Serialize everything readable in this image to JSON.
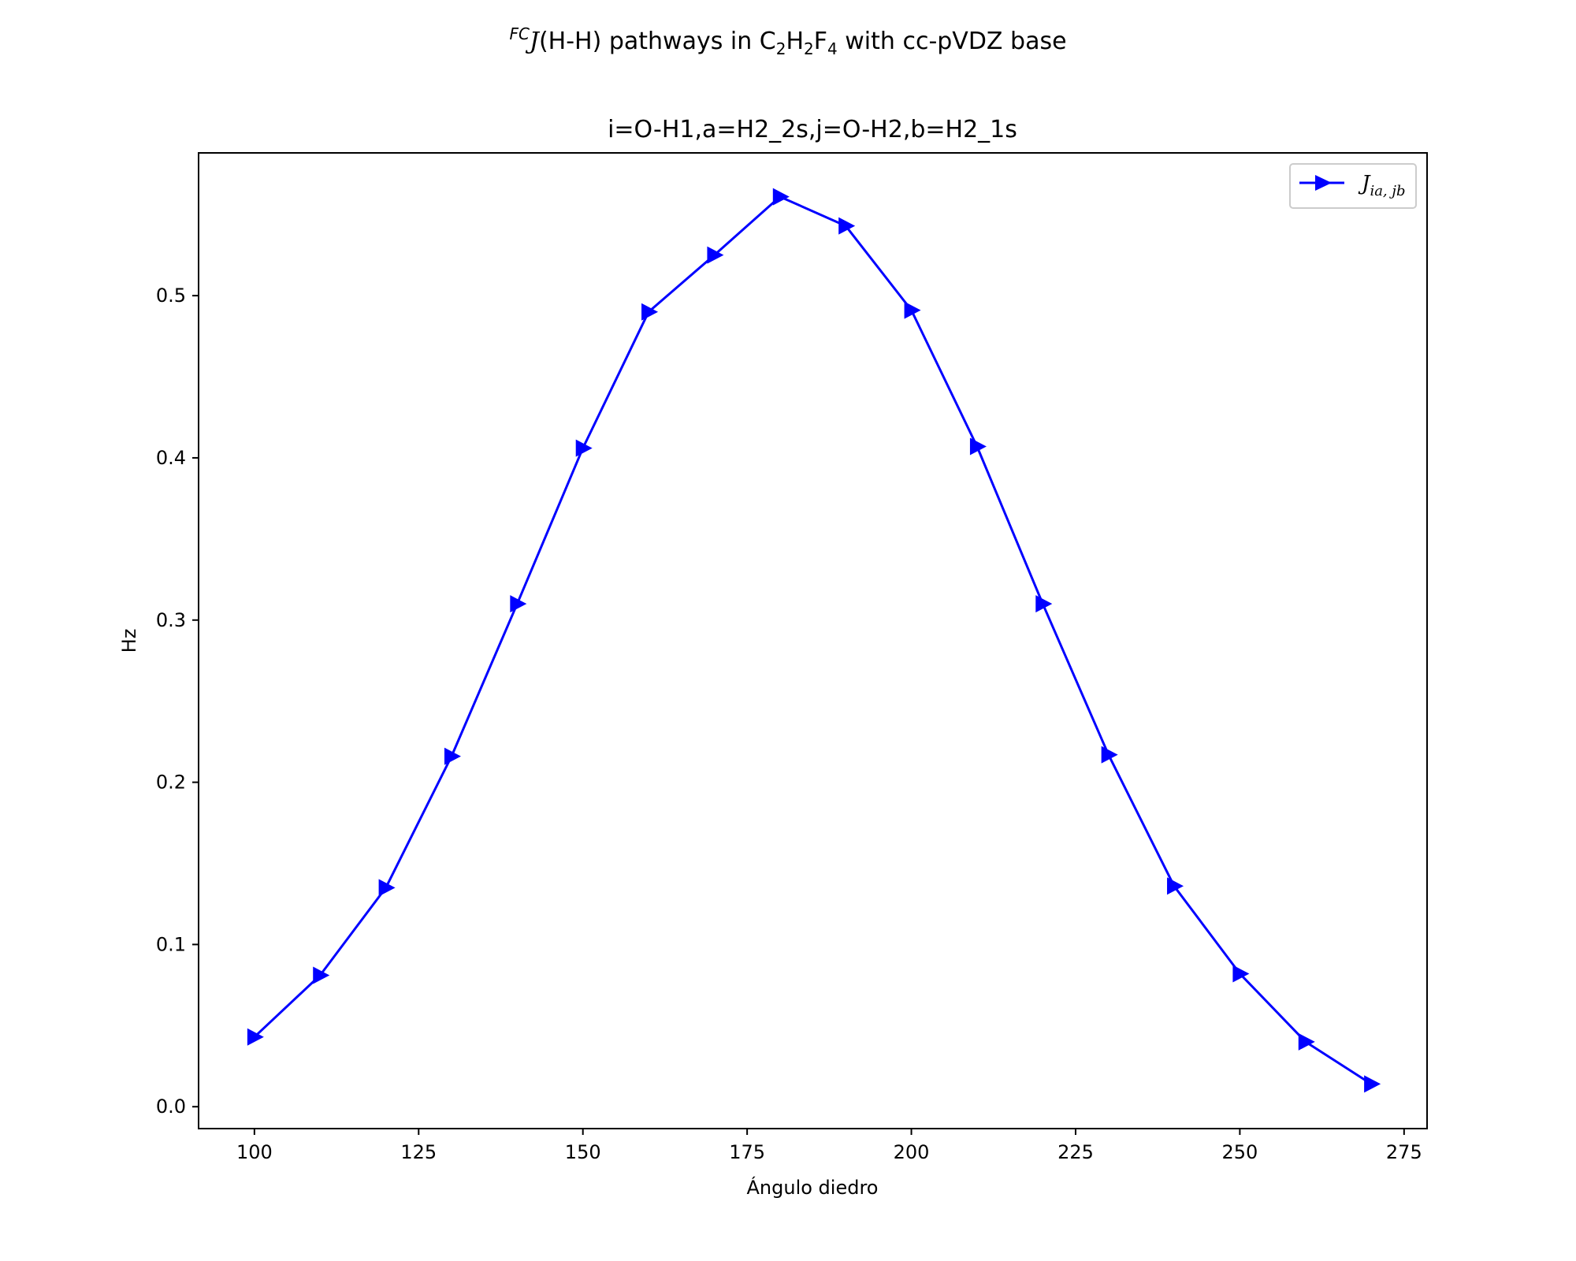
{
  "chart_data": {
    "type": "line",
    "suptitle": {
      "superscript": "FC",
      "prefix": "J",
      "text_a": "(H-H) pathways in C",
      "sub_1": "2",
      "text_b": "H",
      "sub_2": "2",
      "text_c": "F",
      "sub_3": "4",
      "text_d": " with cc-pVDZ base"
    },
    "title": "i=O-H1,a=H2_2s,j=O-H2,b=H2_1s",
    "xlabel": "Ángulo diedro",
    "ylabel": "Hz",
    "xlim": [
      91.5,
      278.5
    ],
    "ylim": [
      -0.0135,
      0.588
    ],
    "xticks": [
      100,
      125,
      150,
      175,
      200,
      225,
      250,
      275
    ],
    "yticks": [
      0.0,
      0.1,
      0.2,
      0.3,
      0.4,
      0.5
    ],
    "ytick_labels": [
      "0.0",
      "0.1",
      "0.2",
      "0.3",
      "0.4",
      "0.5"
    ],
    "grid": false,
    "legend_position": "top-right",
    "series": [
      {
        "name_base": "J",
        "name_sub": "ia, jb",
        "color": "#0000ff",
        "marker": "triangle-right",
        "x": [
          100,
          110,
          120,
          130,
          140,
          150,
          160,
          170,
          180,
          190,
          200,
          210,
          220,
          230,
          240,
          250,
          260,
          270
        ],
        "y": [
          0.043,
          0.081,
          0.135,
          0.216,
          0.31,
          0.406,
          0.49,
          0.525,
          0.561,
          0.543,
          0.491,
          0.407,
          0.31,
          0.217,
          0.136,
          0.082,
          0.04,
          0.014
        ]
      }
    ]
  }
}
